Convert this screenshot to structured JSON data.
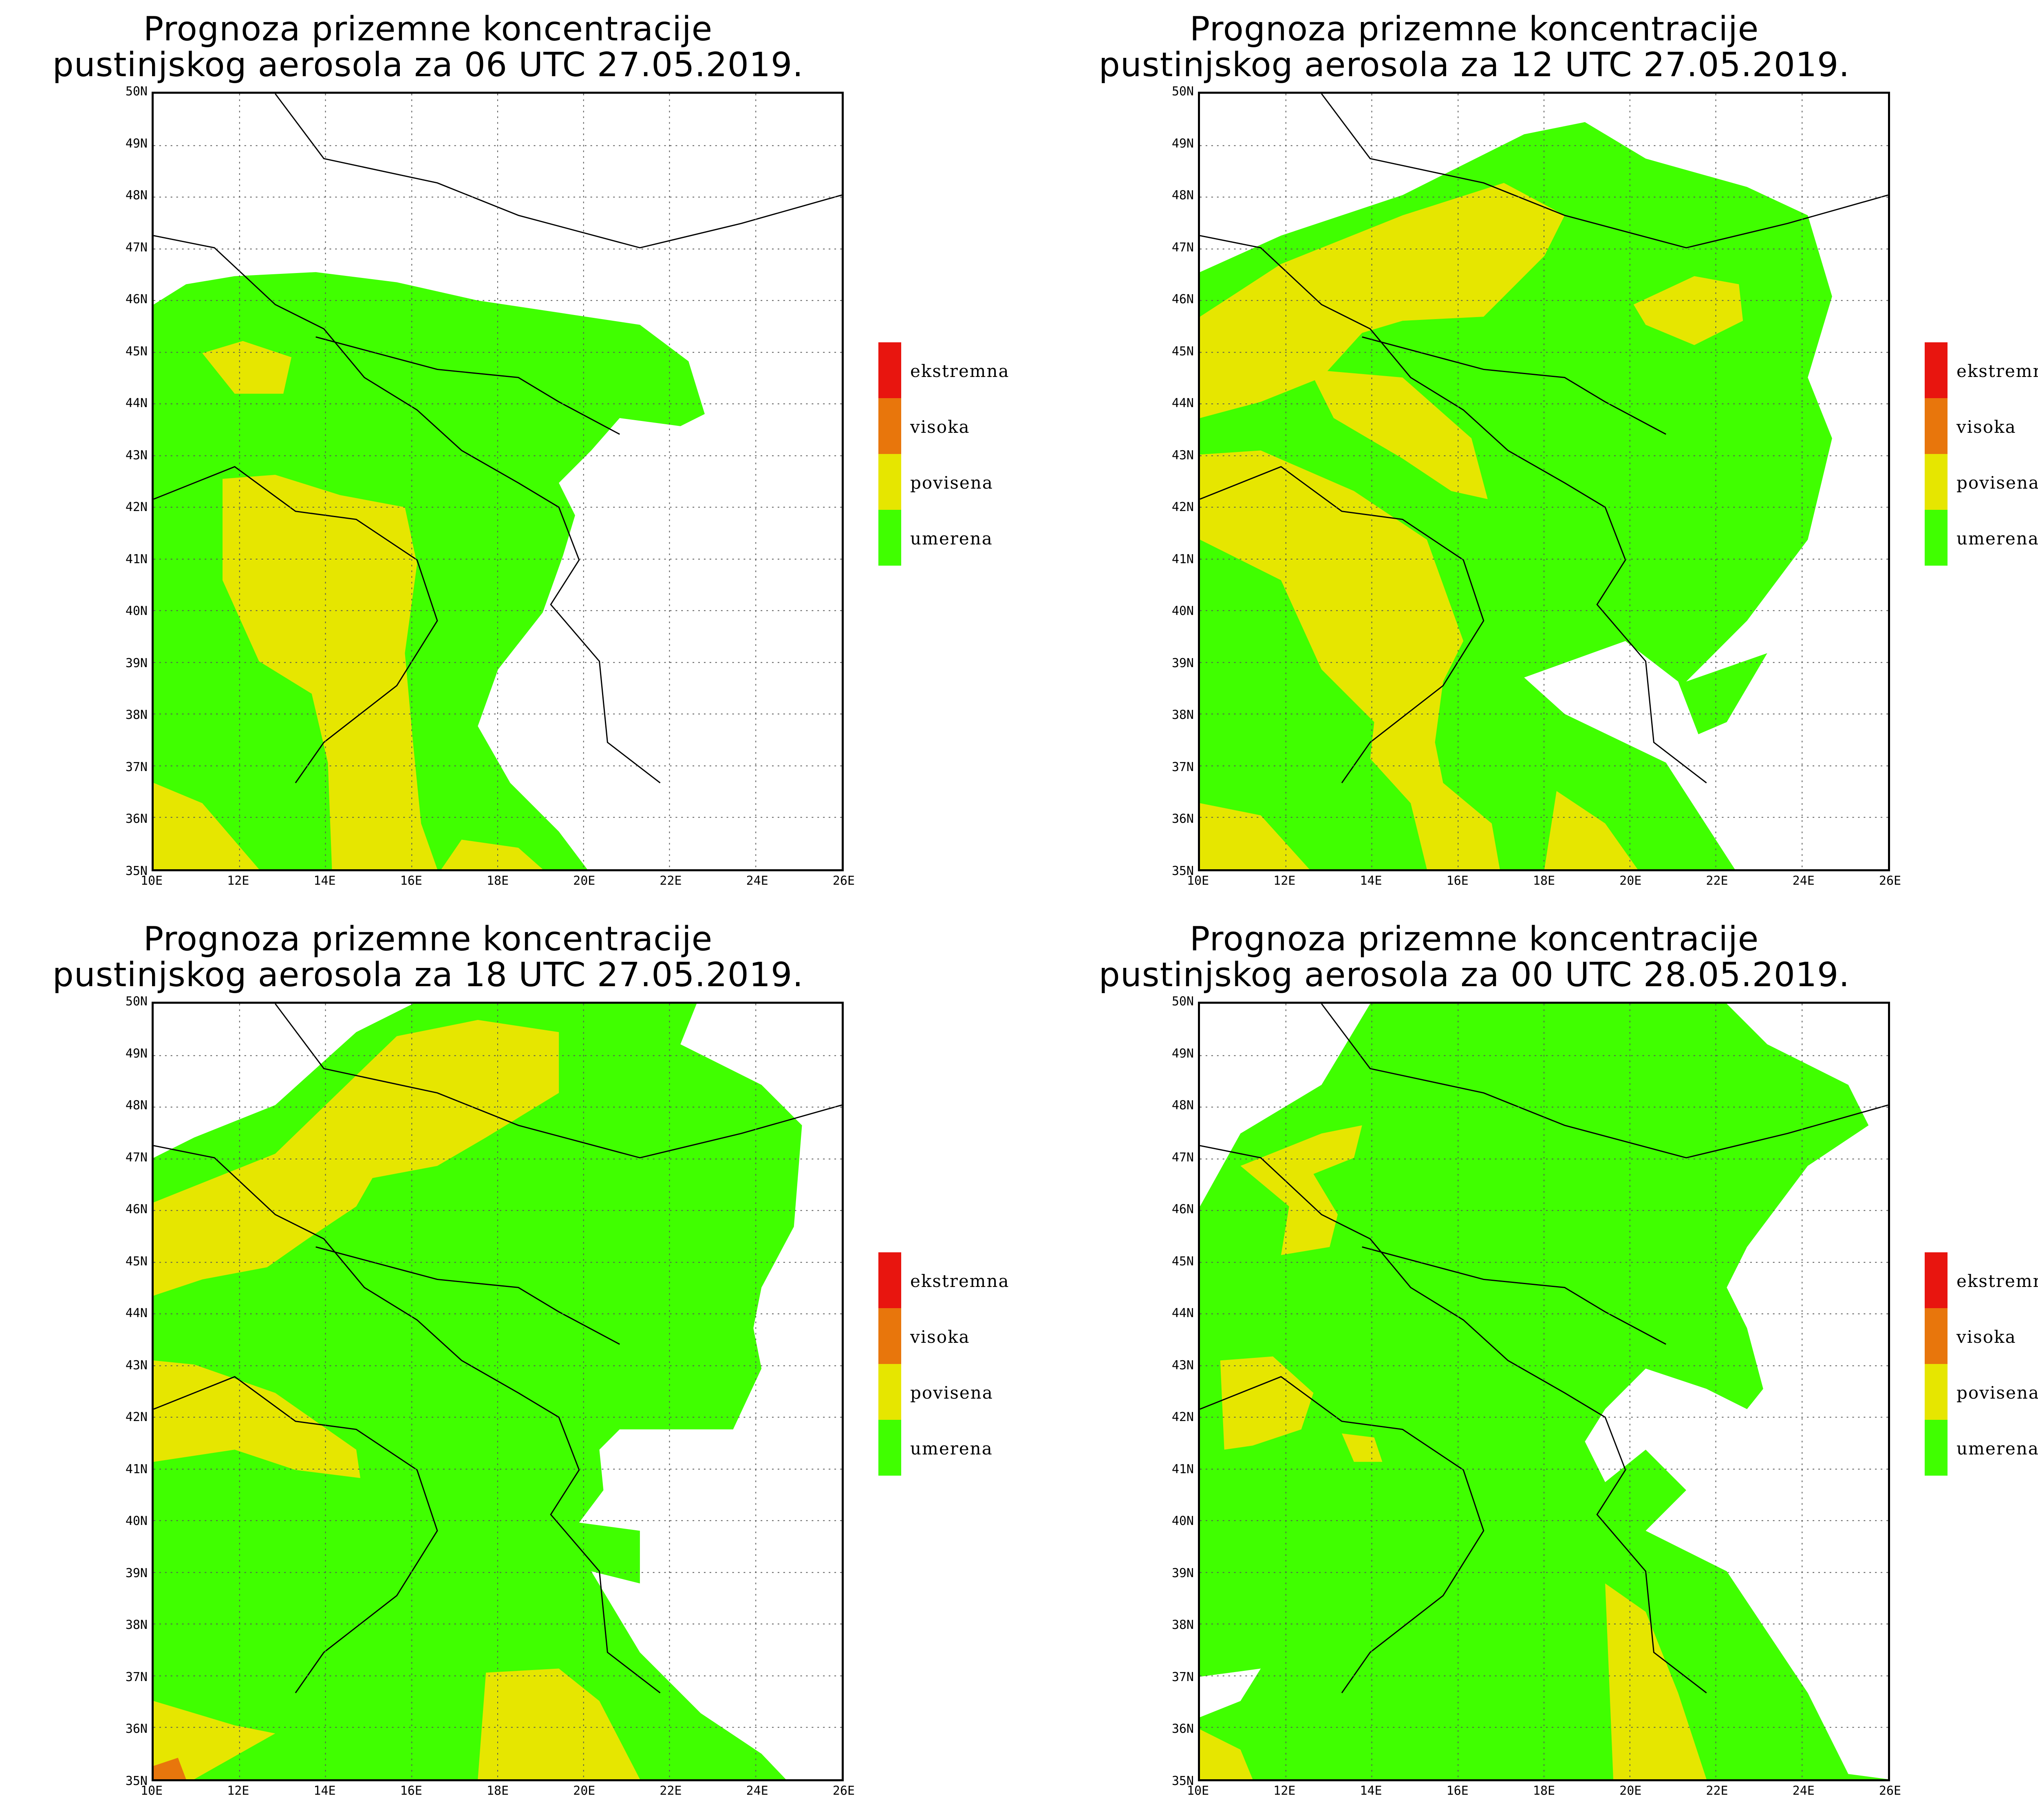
{
  "legend": {
    "items": [
      {
        "label": "ekstremna",
        "color": "#e8150f"
      },
      {
        "label": "visoka",
        "color": "#e8760c"
      },
      {
        "label": "povisena",
        "color": "#e6e600"
      },
      {
        "label": "umerena",
        "color": "#40ff00"
      }
    ]
  },
  "axes": {
    "lat_labels": [
      "50N",
      "49N",
      "48N",
      "47N",
      "46N",
      "45N",
      "44N",
      "43N",
      "42N",
      "41N",
      "40N",
      "39N",
      "38N",
      "37N",
      "36N",
      "35N"
    ],
    "lon_labels": [
      "10E",
      "12E",
      "14E",
      "16E",
      "18E",
      "20E",
      "22E",
      "24E",
      "26E"
    ],
    "lat_range": [
      35,
      50
    ],
    "lon_range": [
      10,
      26
    ],
    "grid": "dotted"
  },
  "panels": [
    {
      "title_line1": "Prognoza prizemne koncentracije",
      "title_line2": "pustinjskog aerosola za 06 UTC 27.05.2019."
    },
    {
      "title_line1": "Prognoza prizemne koncentracije",
      "title_line2": "pustinjskog aerosola za 12 UTC 27.05.2019."
    },
    {
      "title_line1": "Prognoza prizemne koncentracije",
      "title_line2": "pustinjskog aerosola za 18 UTC 27.05.2019."
    },
    {
      "title_line1": "Prognoza prizemne koncentracije",
      "title_line2": "pustinjskog aerosola za 00 UTC 28.05.2019."
    }
  ]
}
